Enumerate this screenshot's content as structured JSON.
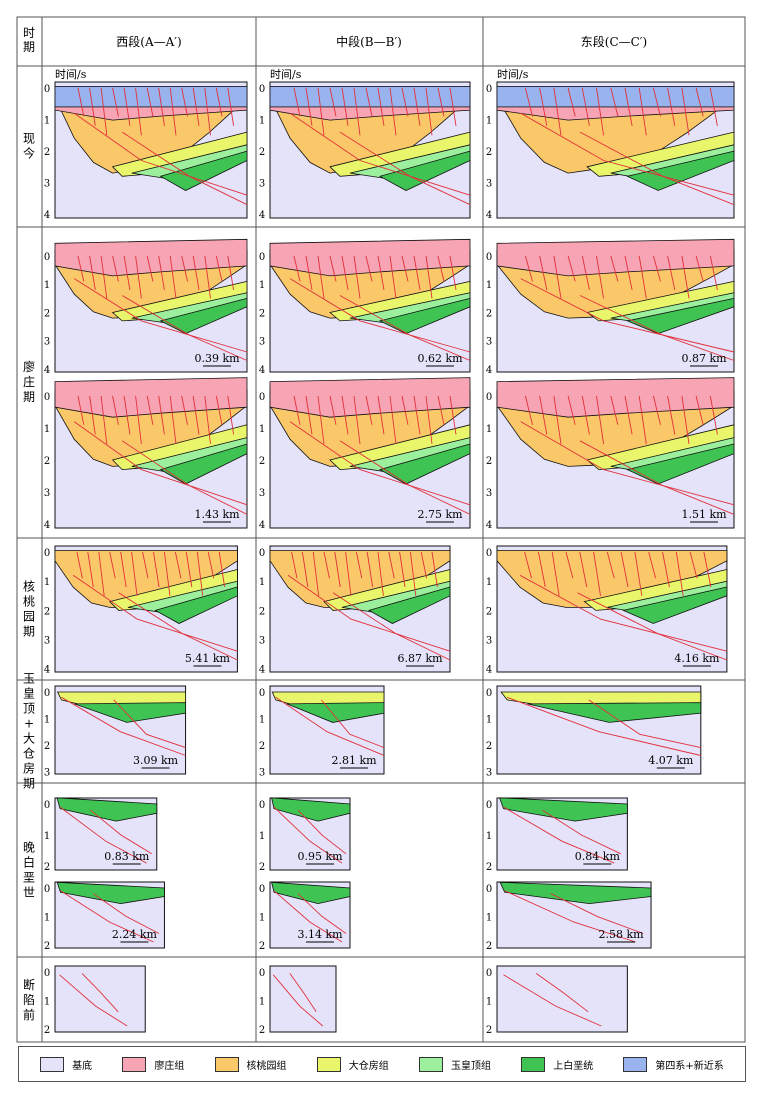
{
  "header": {
    "period_label": "时期",
    "columns": [
      "西段(A—A′)",
      "中段(B—B′)",
      "东段(C—C′)"
    ]
  },
  "axis_title": "时间/s",
  "periods": [
    {
      "label": "现今"
    },
    {
      "label": "廖庄期"
    },
    {
      "label": "核桃园期"
    },
    {
      "label": "玉皇顶+大仓房期"
    },
    {
      "label": "晚白垩世"
    },
    {
      "label": "断陷前"
    }
  ],
  "scales": {
    "liaozhuang_top": [
      "0.39 km",
      "0.62 km",
      "0.87 km"
    ],
    "liaozhuang_bottom": [
      "1.43 km",
      "2.75 km",
      "1.51 km"
    ],
    "hetaoyuan": [
      "5.41 km",
      "6.87 km",
      "4.16 km"
    ],
    "yuhuangding": [
      "3.09 km",
      "2.81 km",
      "4.07 km"
    ],
    "late_cretaceous_top": [
      "0.83 km",
      "0.95 km",
      "0.84 km"
    ],
    "late_cretaceous_bottom": [
      "2.24 km",
      "3.14 km",
      "2.58 km"
    ]
  },
  "legend": [
    {
      "label": "基底",
      "color": "#e4e3fa"
    },
    {
      "label": "廖庄组",
      "color": "#f7a4b4"
    },
    {
      "label": "核桃园组",
      "color": "#fbc869"
    },
    {
      "label": "大仓房组",
      "color": "#e9f56a"
    },
    {
      "label": "玉皇顶组",
      "color": "#9cef9c"
    },
    {
      "label": "上白垩统",
      "color": "#3fc453"
    },
    {
      "label": "第四系+新近系",
      "color": "#99b3ee"
    }
  ],
  "colors": {
    "basement": "#e4e3fa",
    "liaozhuang": "#f7a4b4",
    "hetaoyuan": "#fbc869",
    "dacangfang": "#e9f56a",
    "yuhuangding": "#9cef9c",
    "cretaceous": "#3fc453",
    "quaternary": "#99b3ee",
    "fault": "#e2303a"
  }
}
